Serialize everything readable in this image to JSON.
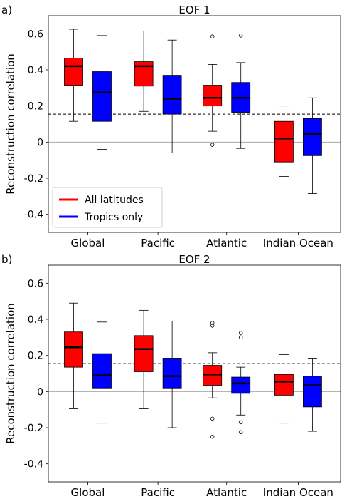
{
  "colors": {
    "all_latitudes": "#ff0000",
    "tropics_only": "#0000ff",
    "median": "#000000",
    "threshold": "#000000"
  },
  "chart_data": [
    {
      "type": "box",
      "panel_label": "a)",
      "title": "EOF 1",
      "ylabel": "Reconstruction correlation",
      "ylim": [
        -0.5,
        0.7
      ],
      "yticks": [
        -0.4,
        -0.2,
        0,
        0.2,
        0.4,
        0.6
      ],
      "ytick_labels": [
        "-0.4",
        "-0.2",
        "0",
        "0.2",
        "0.4",
        "0.6"
      ],
      "categories": [
        "Global",
        "Pacific",
        "Atlantic",
        "Indian Ocean"
      ],
      "threshold": 0.155,
      "zero_line": true,
      "legend": {
        "position": "bottom-left",
        "entries": [
          "All latitudes",
          "Tropics only"
        ]
      },
      "series": [
        {
          "name": "All latitudes",
          "color": "red",
          "boxes": [
            {
              "whislo": 0.115,
              "q1": 0.315,
              "med": 0.42,
              "q3": 0.465,
              "whishi": 0.625,
              "fliers": []
            },
            {
              "whislo": 0.17,
              "q1": 0.31,
              "med": 0.42,
              "q3": 0.445,
              "whishi": 0.615,
              "fliers": []
            },
            {
              "whislo": 0.06,
              "q1": 0.2,
              "med": 0.245,
              "q3": 0.315,
              "whishi": 0.43,
              "fliers": [
                0.585,
                -0.015
              ]
            },
            {
              "whislo": -0.19,
              "q1": -0.11,
              "med": 0.02,
              "q3": 0.115,
              "whishi": 0.2,
              "fliers": []
            }
          ]
        },
        {
          "name": "Tropics only",
          "color": "blue",
          "boxes": [
            {
              "whislo": -0.04,
              "q1": 0.115,
              "med": 0.275,
              "q3": 0.39,
              "whishi": 0.59,
              "fliers": []
            },
            {
              "whislo": -0.06,
              "q1": 0.155,
              "med": 0.24,
              "q3": 0.37,
              "whishi": 0.565,
              "fliers": []
            },
            {
              "whislo": -0.035,
              "q1": 0.165,
              "med": 0.245,
              "q3": 0.33,
              "whishi": 0.44,
              "fliers": [
                0.59
              ]
            },
            {
              "whislo": -0.285,
              "q1": -0.075,
              "med": 0.045,
              "q3": 0.13,
              "whishi": 0.245,
              "fliers": []
            }
          ]
        }
      ]
    },
    {
      "type": "box",
      "panel_label": "b)",
      "title": "EOF 2",
      "ylabel": "Reconstruction correlation",
      "ylim": [
        -0.5,
        0.7
      ],
      "yticks": [
        -0.4,
        -0.2,
        0,
        0.2,
        0.4,
        0.6
      ],
      "ytick_labels": [
        "-0.4",
        "-0.2",
        "0",
        "0.2",
        "0.4",
        "0.6"
      ],
      "categories": [
        "Global",
        "Pacific",
        "Atlantic",
        "Indian Ocean"
      ],
      "threshold": 0.155,
      "zero_line": true,
      "series": [
        {
          "name": "All latitudes",
          "color": "red",
          "boxes": [
            {
              "whislo": -0.095,
              "q1": 0.135,
              "med": 0.245,
              "q3": 0.33,
              "whishi": 0.49,
              "fliers": []
            },
            {
              "whislo": -0.095,
              "q1": 0.11,
              "med": 0.235,
              "q3": 0.31,
              "whishi": 0.45,
              "fliers": []
            },
            {
              "whislo": -0.035,
              "q1": 0.035,
              "med": 0.095,
              "q3": 0.145,
              "whishi": 0.215,
              "fliers": [
                0.38,
                0.365,
                -0.15,
                -0.25
              ]
            },
            {
              "whislo": -0.175,
              "q1": -0.02,
              "med": 0.055,
              "q3": 0.095,
              "whishi": 0.205,
              "fliers": []
            }
          ]
        },
        {
          "name": "Tropics only",
          "color": "blue",
          "boxes": [
            {
              "whislo": -0.175,
              "q1": 0.02,
              "med": 0.09,
              "q3": 0.21,
              "whishi": 0.385,
              "fliers": []
            },
            {
              "whislo": -0.2,
              "q1": 0.02,
              "med": 0.085,
              "q3": 0.185,
              "whishi": 0.39,
              "fliers": []
            },
            {
              "whislo": -0.13,
              "q1": -0.01,
              "med": 0.045,
              "q3": 0.08,
              "whishi": 0.135,
              "fliers": [
                0.325,
                0.3,
                -0.17,
                -0.225
              ]
            },
            {
              "whislo": -0.22,
              "q1": -0.085,
              "med": 0.04,
              "q3": 0.085,
              "whishi": 0.185,
              "fliers": []
            }
          ]
        }
      ]
    }
  ]
}
